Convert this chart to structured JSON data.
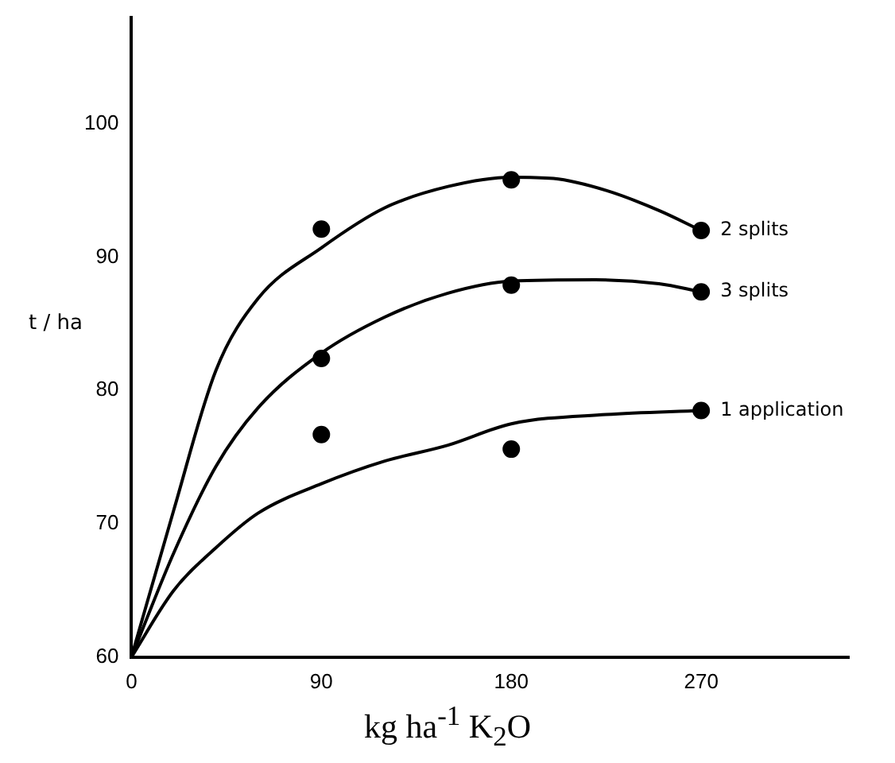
{
  "chart_data": {
    "type": "scatter",
    "xlabel": "kg ha$^{-1}$ K$_{2}$O",
    "ylabel": "t / ha",
    "xlim": [
      0,
      340
    ],
    "ylim": [
      60,
      108
    ],
    "xticks": [
      0,
      90,
      180,
      270
    ],
    "yticks": [
      60,
      70,
      80,
      90,
      100
    ],
    "grid": false,
    "legend": false,
    "marker": "circle",
    "series": [
      {
        "color": "#000000",
        "x": [
          90,
          180,
          270
        ],
        "values": [
          92.1,
          95.8,
          92
        ]
      },
      {
        "color": "#000000",
        "x": [
          90,
          180,
          270
        ],
        "values": [
          82.4,
          87.9,
          87.4
        ]
      },
      {
        "color": "#000000",
        "x": [
          90,
          180,
          270
        ],
        "values": [
          76.7,
          75.6,
          78.5
        ]
      },
      {
        "type": "line",
        "name": "2 splits",
        "color": "#000000",
        "marker": "none",
        "line_style": "solid",
        "x": [
          0,
          20,
          40,
          60,
          90,
          120,
          150,
          180,
          200,
          225,
          250,
          270
        ],
        "values": [
          60,
          71,
          81.5,
          86.9,
          90.7,
          93.7,
          95.3,
          96,
          95.9,
          95,
          93.5,
          92
        ]
      },
      {
        "type": "line",
        "name": "3 splits",
        "color": "#000000",
        "marker": "none",
        "line_style": "solid",
        "x": [
          0,
          20,
          40,
          60,
          90,
          120,
          150,
          180,
          220,
          250,
          270
        ],
        "values": [
          60,
          67.8,
          74.3,
          78.7,
          82.8,
          85.5,
          87.3,
          88.2,
          88.3,
          88,
          87.4
        ]
      },
      {
        "type": "line",
        "name": "1 application",
        "color": "#000000",
        "marker": "none",
        "line_style": "solid",
        "x": [
          0,
          20,
          40,
          60,
          90,
          120,
          150,
          180,
          225,
          270
        ],
        "values": [
          60,
          65,
          68.2,
          70.8,
          73,
          74.7,
          75.9,
          77.5,
          78.2,
          78.5
        ]
      }
    ]
  }
}
